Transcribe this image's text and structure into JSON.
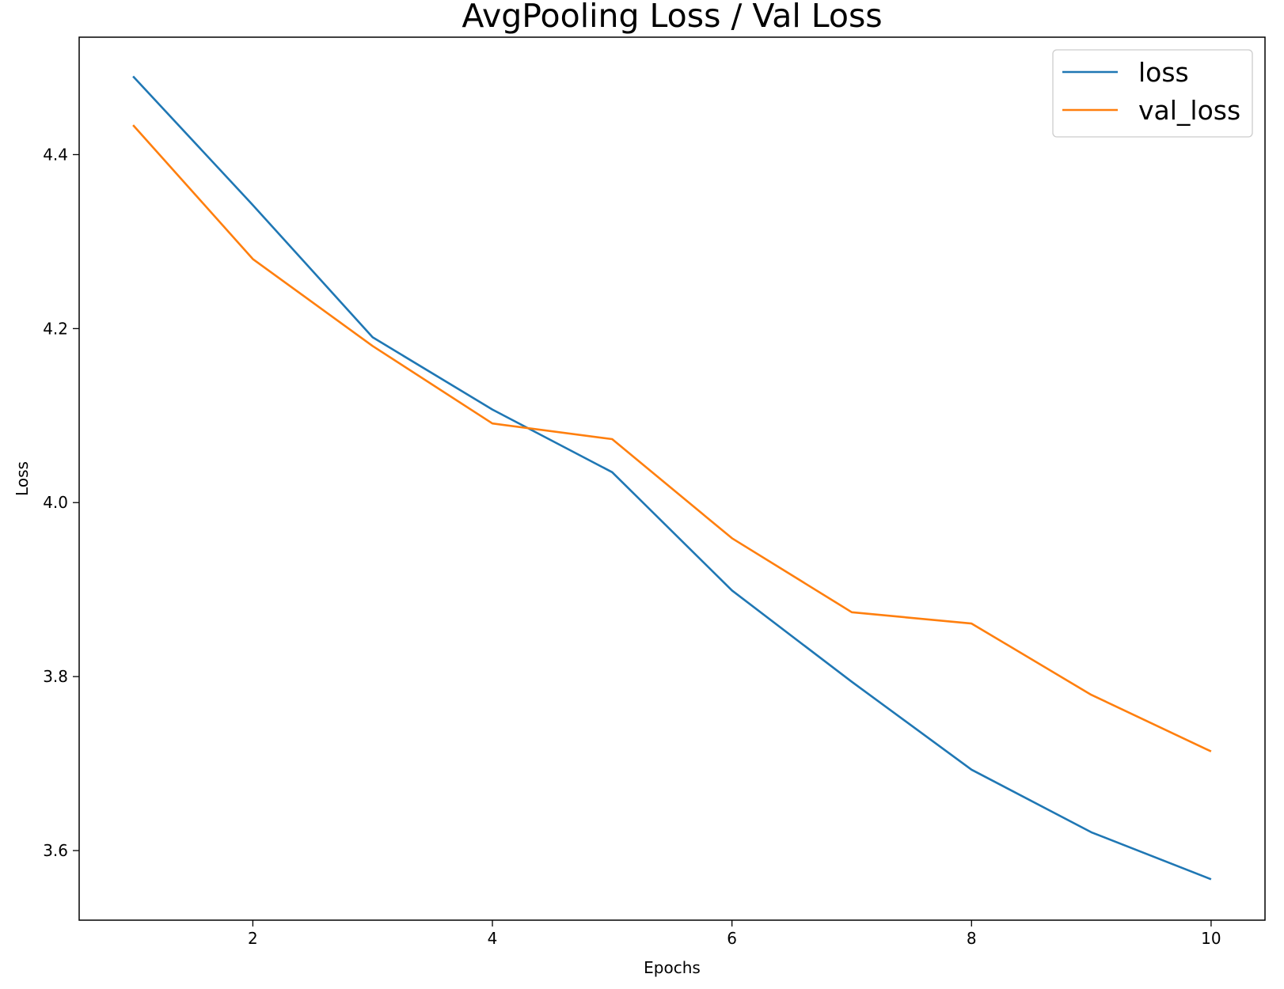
{
  "chart_data": {
    "type": "line",
    "title": "AvgPooling Loss / Val Loss",
    "xlabel": "Epochs",
    "ylabel": "Loss",
    "x": [
      1,
      2,
      3,
      4,
      5,
      6,
      7,
      8,
      9,
      10
    ],
    "xlim": [
      0.55,
      10.45
    ],
    "ylim": [
      3.52,
      4.535
    ],
    "xticks": [
      2,
      4,
      6,
      8,
      10
    ],
    "yticks": [
      3.6,
      3.8,
      4.0,
      4.2,
      4.4
    ],
    "ytick_labels": [
      "3.6",
      "3.8",
      "4.0",
      "4.2",
      "4.4"
    ],
    "grid": false,
    "legend_position": "upper right",
    "series": [
      {
        "name": "loss",
        "color": "#1f77b4",
        "values": [
          4.49,
          4.342,
          4.19,
          4.107,
          4.035,
          3.899,
          3.794,
          3.693,
          3.621,
          3.567
        ]
      },
      {
        "name": "val_loss",
        "color": "#ff7f0e",
        "values": [
          4.434,
          4.28,
          4.18,
          4.091,
          4.073,
          3.959,
          3.874,
          3.861,
          3.779,
          3.714
        ]
      }
    ]
  }
}
